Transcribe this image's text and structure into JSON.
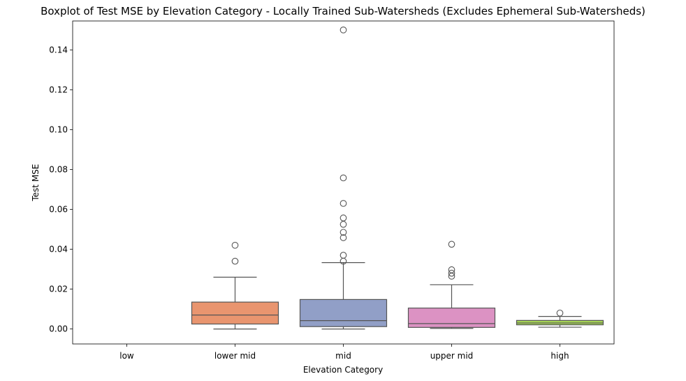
{
  "chart_data": {
    "type": "boxplot",
    "title": "Boxplot of Test MSE by Elevation Category - Locally Trained Sub-Watersheds (Excludes Ephemeral Sub-Watersheds)",
    "xlabel": "Elevation Category",
    "ylabel": "Test MSE",
    "ylim": [
      -0.0075,
      0.1545
    ],
    "yticks": [
      0.0,
      0.02,
      0.04,
      0.06,
      0.08,
      0.1,
      0.12,
      0.14
    ],
    "ytick_labels": [
      "0.00",
      "0.02",
      "0.04",
      "0.06",
      "0.08",
      "0.10",
      "0.12",
      "0.14"
    ],
    "categories": [
      "low",
      "lower mid",
      "mid",
      "upper mid",
      "high"
    ],
    "grid": false,
    "boxes": [
      {
        "category": "low",
        "color": "#66c2a5",
        "empty": true
      },
      {
        "category": "lower mid",
        "color": "#e9956f",
        "whisker_low": 0.0,
        "q1": 0.0025,
        "median": 0.007,
        "q3": 0.0135,
        "whisker_high": 0.026,
        "outliers": [
          0.034,
          0.042
        ]
      },
      {
        "category": "mid",
        "color": "#919fc7",
        "whisker_low": 0.0,
        "q1": 0.0012,
        "median": 0.0042,
        "q3": 0.0148,
        "whisker_high": 0.0333,
        "outliers": [
          0.034,
          0.037,
          0.0458,
          0.0485,
          0.0525,
          0.0557,
          0.063,
          0.0758,
          0.15
        ]
      },
      {
        "category": "upper mid",
        "color": "#dc92c3",
        "whisker_low": 0.0003,
        "q1": 0.0008,
        "median": 0.0027,
        "q3": 0.0105,
        "whisker_high": 0.0222,
        "outliers": [
          0.0265,
          0.028,
          0.0297,
          0.0425
        ]
      },
      {
        "category": "high",
        "color": "#a6d456",
        "whisker_low": 0.0009,
        "q1": 0.0021,
        "median": 0.003,
        "q3": 0.0043,
        "whisker_high": 0.0063,
        "outliers": [
          0.008
        ]
      }
    ]
  }
}
